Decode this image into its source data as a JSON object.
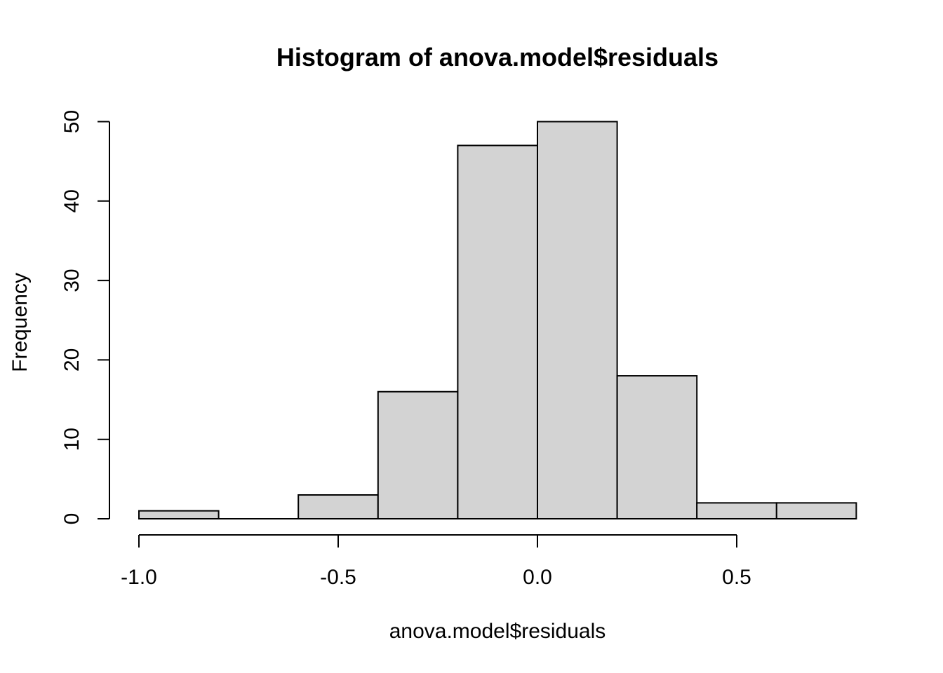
{
  "chart_data": {
    "type": "bar",
    "subtype": "histogram",
    "title": "Histogram of anova.model$residuals",
    "xlabel": "anova.model$residuals",
    "ylabel": "Frequency",
    "bin_edges": [
      -1.0,
      -0.8,
      -0.6,
      -0.4,
      -0.2,
      0.0,
      0.2,
      0.4,
      0.6,
      0.8
    ],
    "counts": [
      1,
      0,
      3,
      16,
      47,
      50,
      18,
      2,
      2
    ],
    "x_ticks": [
      {
        "value": -1.0,
        "label": "-1.0"
      },
      {
        "value": -0.5,
        "label": "-0.5"
      },
      {
        "value": 0.0,
        "label": "0.0"
      },
      {
        "value": 0.5,
        "label": "0.5"
      }
    ],
    "y_ticks": [
      {
        "value": 0,
        "label": "0"
      },
      {
        "value": 10,
        "label": "10"
      },
      {
        "value": 20,
        "label": "20"
      },
      {
        "value": 30,
        "label": "30"
      },
      {
        "value": 40,
        "label": "40"
      },
      {
        "value": 50,
        "label": "50"
      }
    ],
    "xlim": [
      -1.0,
      0.8
    ],
    "ylim": [
      0,
      50
    ],
    "grid": false,
    "legend": null,
    "colors": {
      "bar_fill": "#d3d3d3",
      "bar_stroke": "#000000",
      "axis": "#000000",
      "text": "#000000",
      "background": "#ffffff"
    }
  }
}
